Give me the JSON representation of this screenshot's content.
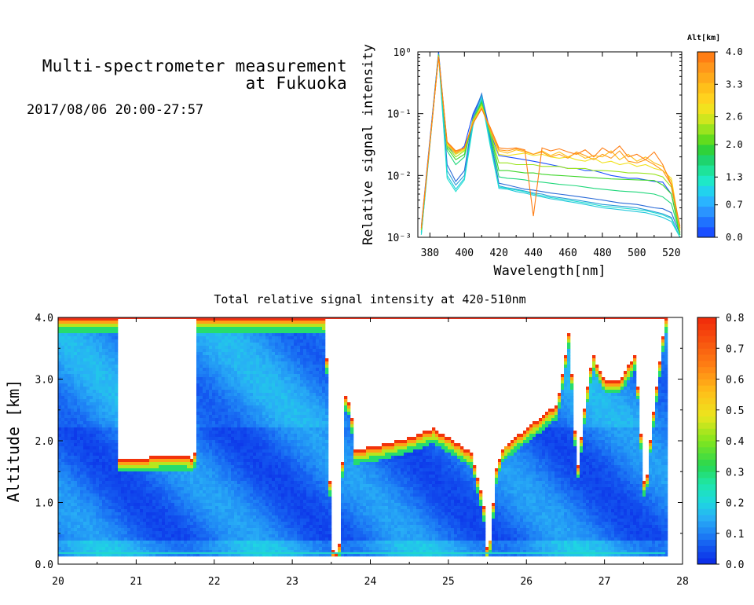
{
  "header": {
    "title_line1": "Multi-spectrometer measurement",
    "title_line2": "at Fukuoka",
    "datetime": "2017/08/06 20:00-27:57"
  },
  "chart_data": [
    {
      "type": "line",
      "xlabel": "Wavelength[nm]",
      "ylabel": "Relative signal intensity",
      "yscale": "log",
      "xlim": [
        373,
        526
      ],
      "ylim": [
        0.001,
        1
      ],
      "xticks": [
        380,
        400,
        420,
        440,
        460,
        480,
        500,
        520
      ],
      "yticks": [
        "10⁰",
        "10⁻¹",
        "10⁻²",
        "10⁻³"
      ],
      "colorbar": {
        "label": "Alt[km]",
        "range": [
          0.0,
          4.0
        ],
        "tick_labels": [
          "4.0",
          "3.3",
          "2.6",
          "2.0",
          "1.3",
          "0.7",
          "0.0"
        ],
        "colors": [
          "#1a4fff",
          "#1f72ff",
          "#2a94ff",
          "#2ab4ff",
          "#22d2ee",
          "#1ee8c8",
          "#1ee39a",
          "#1ed46e",
          "#2fd23a",
          "#62dc1e",
          "#9ae41e",
          "#cfe61e",
          "#f2e21e",
          "#ffd21e",
          "#ffc01a",
          "#ffaa1a",
          "#ff961a",
          "#ff7e14"
        ]
      },
      "x": [
        375,
        385,
        390,
        395,
        400,
        405,
        410,
        415,
        420,
        425,
        430,
        435,
        440,
        445,
        450,
        455,
        460,
        465,
        470,
        475,
        480,
        485,
        490,
        495,
        500,
        505,
        510,
        515,
        520,
        525
      ],
      "series": [
        {
          "alt": 0.0,
          "color": "#1a4fff",
          "values": [
            0.0015,
            1.0,
            0.03,
            0.022,
            0.03,
            0.1,
            0.2,
            0.05,
            0.021,
            0.02,
            0.019,
            0.018,
            0.017,
            0.016,
            0.015,
            0.014,
            0.013,
            0.013,
            0.012,
            0.012,
            0.011,
            0.01,
            0.0095,
            0.009,
            0.009,
            0.0085,
            0.008,
            0.0078,
            0.005,
            0.0012
          ]
        },
        {
          "alt": 0.3,
          "color": "#2a6ad8",
          "values": [
            0.0012,
            0.95,
            0.015,
            0.008,
            0.012,
            0.09,
            0.21,
            0.04,
            0.0075,
            0.007,
            0.0065,
            0.006,
            0.0058,
            0.0055,
            0.0052,
            0.005,
            0.0048,
            0.0046,
            0.0044,
            0.0042,
            0.004,
            0.0038,
            0.0036,
            0.0035,
            0.0034,
            0.0032,
            0.003,
            0.0029,
            0.0025,
            0.0011
          ]
        },
        {
          "alt": 0.7,
          "color": "#2a9ad8",
          "values": [
            0.0012,
            0.92,
            0.012,
            0.007,
            0.01,
            0.08,
            0.2,
            0.035,
            0.0068,
            0.0063,
            0.006,
            0.0056,
            0.0052,
            0.005,
            0.0046,
            0.0044,
            0.0042,
            0.004,
            0.0038,
            0.0036,
            0.0034,
            0.0033,
            0.0032,
            0.0031,
            0.003,
            0.0028,
            0.0026,
            0.0024,
            0.0021,
            0.001
          ]
        },
        {
          "alt": 1.0,
          "color": "#22c8dc",
          "values": [
            0.0011,
            0.9,
            0.01,
            0.006,
            0.009,
            0.07,
            0.18,
            0.032,
            0.0062,
            0.006,
            0.0055,
            0.0052,
            0.0048,
            0.0045,
            0.0042,
            0.004,
            0.0038,
            0.0036,
            0.0034,
            0.0032,
            0.003,
            0.0029,
            0.0028,
            0.0027,
            0.0026,
            0.0025,
            0.0023,
            0.0021,
            0.0018,
            0.001
          ]
        },
        {
          "alt": 1.3,
          "color": "#1ee0d0",
          "values": [
            0.0011,
            0.88,
            0.009,
            0.0055,
            0.0085,
            0.065,
            0.17,
            0.03,
            0.0065,
            0.0062,
            0.0058,
            0.0055,
            0.005,
            0.0047,
            0.0044,
            0.0042,
            0.004,
            0.0038,
            0.0036,
            0.0034,
            0.0032,
            0.0031,
            0.003,
            0.0029,
            0.0028,
            0.0027,
            0.0025,
            0.0023,
            0.002,
            0.001
          ]
        },
        {
          "alt": 1.7,
          "color": "#1ed77a",
          "values": [
            0.0013,
            0.9,
            0.025,
            0.015,
            0.02,
            0.08,
            0.16,
            0.045,
            0.0095,
            0.009,
            0.0088,
            0.0085,
            0.008,
            0.0078,
            0.0075,
            0.0072,
            0.007,
            0.0068,
            0.0065,
            0.0062,
            0.006,
            0.0058,
            0.0056,
            0.0055,
            0.0054,
            0.0052,
            0.005,
            0.0045,
            0.0035,
            0.0011
          ]
        },
        {
          "alt": 2.1,
          "color": "#3fd62a",
          "values": [
            0.0013,
            0.9,
            0.028,
            0.018,
            0.022,
            0.08,
            0.15,
            0.05,
            0.012,
            0.012,
            0.0115,
            0.011,
            0.011,
            0.0105,
            0.0102,
            0.01,
            0.0098,
            0.0096,
            0.0094,
            0.0092,
            0.009,
            0.0088,
            0.0087,
            0.0086,
            0.0085,
            0.0084,
            0.0083,
            0.007,
            0.005,
            0.0011
          ]
        },
        {
          "alt": 2.5,
          "color": "#9ae41e",
          "values": [
            0.0013,
            0.88,
            0.03,
            0.02,
            0.025,
            0.08,
            0.14,
            0.05,
            0.016,
            0.016,
            0.015,
            0.015,
            0.015,
            0.014,
            0.014,
            0.014,
            0.013,
            0.013,
            0.013,
            0.012,
            0.012,
            0.0118,
            0.0115,
            0.011,
            0.011,
            0.0108,
            0.0105,
            0.0095,
            0.0065,
            0.0012
          ]
        },
        {
          "alt": 3.0,
          "color": "#f2e21e",
          "values": [
            0.0014,
            0.85,
            0.032,
            0.022,
            0.026,
            0.075,
            0.13,
            0.055,
            0.022,
            0.021,
            0.022,
            0.023,
            0.021,
            0.022,
            0.02,
            0.019,
            0.02,
            0.018,
            0.017,
            0.019,
            0.016,
            0.017,
            0.015,
            0.016,
            0.014,
            0.015,
            0.013,
            0.012,
            0.009,
            0.0013
          ]
        },
        {
          "alt": 3.3,
          "color": "#ffc01a",
          "values": [
            0.0014,
            0.85,
            0.033,
            0.023,
            0.027,
            0.075,
            0.125,
            0.055,
            0.025,
            0.023,
            0.026,
            0.024,
            0.022,
            0.025,
            0.021,
            0.024,
            0.02,
            0.023,
            0.019,
            0.021,
            0.02,
            0.025,
            0.018,
            0.022,
            0.017,
            0.02,
            0.016,
            0.014,
            0.008,
            0.0014
          ]
        },
        {
          "alt": 3.7,
          "color": "#ff9a1a",
          "values": [
            0.0014,
            0.84,
            0.034,
            0.024,
            0.028,
            0.07,
            0.12,
            0.055,
            0.026,
            0.025,
            0.027,
            0.025,
            0.022,
            0.024,
            0.02,
            0.022,
            0.019,
            0.024,
            0.021,
            0.018,
            0.022,
            0.019,
            0.025,
            0.017,
            0.016,
            0.018,
            0.015,
            0.012,
            0.007,
            0.0014
          ]
        },
        {
          "alt": 4.0,
          "color": "#ff7e14",
          "values": [
            0.0014,
            0.84,
            0.035,
            0.025,
            0.028,
            0.07,
            0.12,
            0.06,
            0.028,
            0.027,
            0.028,
            0.026,
            0.0022,
            0.028,
            0.025,
            0.027,
            0.024,
            0.022,
            0.026,
            0.02,
            0.028,
            0.023,
            0.03,
            0.02,
            0.022,
            0.018,
            0.024,
            0.015,
            0.007,
            0.0015
          ]
        }
      ]
    },
    {
      "type": "heatmap",
      "title": "Total relative signal intensity at 420-510nm",
      "xlabel": "",
      "ylabel": "Altitude [km]",
      "xlim": [
        20,
        28
      ],
      "ylim": [
        0.0,
        4.0
      ],
      "x_tick_labels": [
        "20",
        "21",
        "22",
        "23",
        "24",
        "25",
        "26",
        "27",
        "28"
      ],
      "y_tick_labels": [
        "0.0",
        "1.0",
        "2.0",
        "3.0",
        "4.0"
      ],
      "colorbar": {
        "range": [
          0.0,
          0.8
        ],
        "tick_labels": [
          "0.8",
          "0.7",
          "0.6",
          "0.5",
          "0.4",
          "0.3",
          "0.2",
          "0.1",
          "0.0"
        ]
      },
      "data_x_range": [
        20.0,
        27.78
      ],
      "data_y_range": [
        0.15,
        4.0
      ],
      "cloud_base_km": [
        [
          20.0,
          4.0
        ],
        [
          20.75,
          4.0
        ],
        [
          20.78,
          1.72
        ],
        [
          21.0,
          1.72
        ],
        [
          21.3,
          1.74
        ],
        [
          21.55,
          1.76
        ],
        [
          21.75,
          1.72
        ],
        [
          21.78,
          4.0
        ],
        [
          23.4,
          4.0
        ],
        [
          23.45,
          3.2
        ],
        [
          23.5,
          0.3
        ],
        [
          23.56,
          0.15
        ],
        [
          23.62,
          0.4
        ],
        [
          23.66,
          2.6
        ],
        [
          23.7,
          2.8
        ],
        [
          23.76,
          2.4
        ],
        [
          23.8,
          1.85
        ],
        [
          24.2,
          1.95
        ],
        [
          24.5,
          2.05
        ],
        [
          24.8,
          2.2
        ],
        [
          25.0,
          2.05
        ],
        [
          25.3,
          1.8
        ],
        [
          25.45,
          1.0
        ],
        [
          25.5,
          0.2
        ],
        [
          25.55,
          0.5
        ],
        [
          25.6,
          1.5
        ],
        [
          25.7,
          1.9
        ],
        [
          26.0,
          2.2
        ],
        [
          26.2,
          2.4
        ],
        [
          26.4,
          2.6
        ],
        [
          26.55,
          3.8
        ],
        [
          26.65,
          1.5
        ],
        [
          26.75,
          2.6
        ],
        [
          26.85,
          3.4
        ],
        [
          27.0,
          3.0
        ],
        [
          27.2,
          3.0
        ],
        [
          27.4,
          3.4
        ],
        [
          27.52,
          1.1
        ],
        [
          27.6,
          2.2
        ],
        [
          27.7,
          3.2
        ],
        [
          27.78,
          4.0
        ]
      ]
    }
  ]
}
